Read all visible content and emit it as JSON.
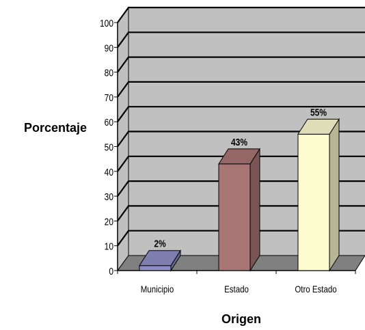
{
  "chart_data": {
    "type": "bar",
    "categories": [
      "Municipio",
      "Estado",
      "Otro Estado"
    ],
    "values": [
      2,
      43,
      55
    ],
    "data_labels": [
      "2%",
      "43%",
      "55%"
    ],
    "title": "",
    "xlabel": "Origen",
    "ylabel": "Porcentaje",
    "ylim": [
      0,
      100
    ],
    "yticks": [
      "0",
      "10",
      "20",
      "30",
      "40",
      "50",
      "60",
      "70",
      "80",
      "90",
      "100"
    ],
    "grid": true,
    "legend": "none",
    "colors": {
      "bars": [
        "#8f8fc7",
        "#a97676",
        "#fdfbd0"
      ],
      "wall": "#c0c0c0",
      "floor": "#808080"
    }
  }
}
